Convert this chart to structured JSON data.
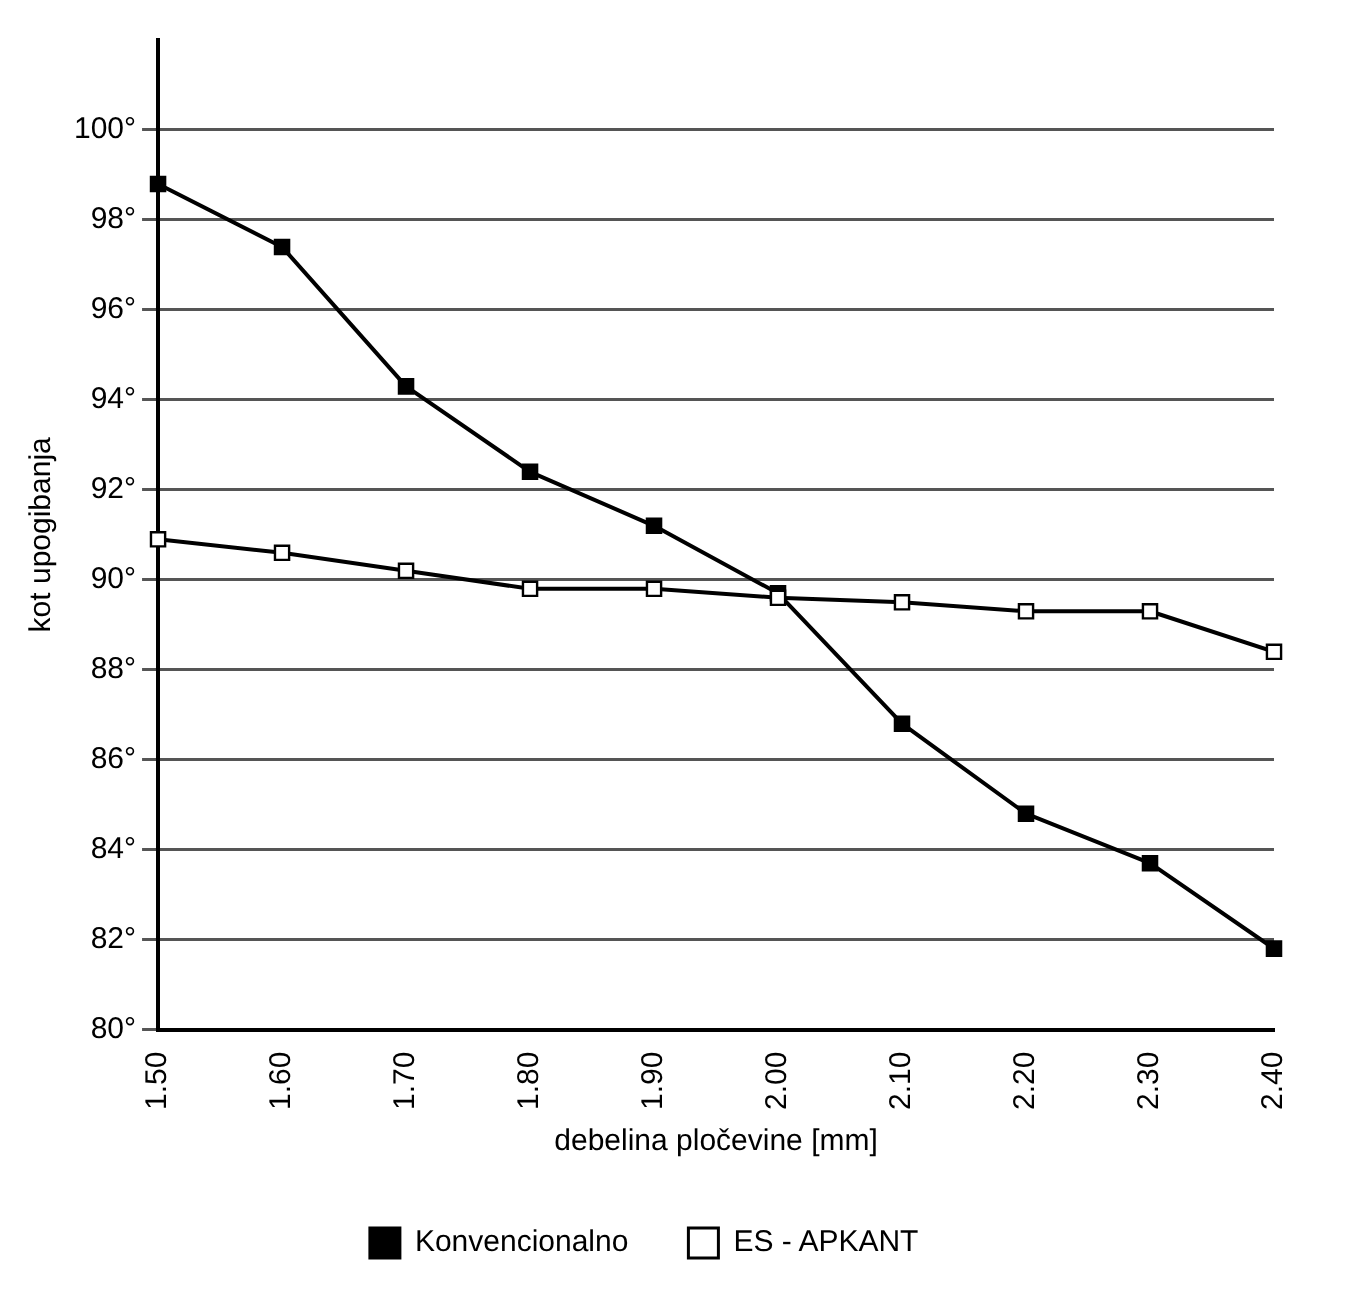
{
  "chart_data": {
    "type": "line",
    "xlabel": "debelina pločevine [mm]",
    "ylabel": "kot upogibanja",
    "categories": [
      "1.50",
      "1.60",
      "1.70",
      "1.80",
      "1.90",
      "2.00",
      "2.10",
      "2.20",
      "2.30",
      "2.40"
    ],
    "series": [
      {
        "name": "Konvencionalno",
        "color": "#000000",
        "values": [
          98.8,
          97.4,
          94.3,
          92.4,
          91.2,
          89.7,
          86.8,
          84.8,
          83.7,
          81.8
        ]
      },
      {
        "name": "ES - APKANT",
        "color": "#000000",
        "values": [
          90.9,
          90.6,
          90.2,
          89.8,
          89.8,
          89.6,
          89.5,
          89.3,
          89.3,
          88.4
        ]
      }
    ],
    "ylim": [
      80,
      102
    ],
    "yticks": [
      {
        "value": 80,
        "label": "80°"
      },
      {
        "value": 82,
        "label": "82°"
      },
      {
        "value": 84,
        "label": "84°"
      },
      {
        "value": 86,
        "label": "86°"
      },
      {
        "value": 88,
        "label": "88°"
      },
      {
        "value": 90,
        "label": "90°"
      },
      {
        "value": 92,
        "label": "92°"
      },
      {
        "value": 94,
        "label": "94°"
      },
      {
        "value": 96,
        "label": "96°"
      },
      {
        "value": 98,
        "label": "98°"
      },
      {
        "value": 100,
        "label": "100°"
      }
    ],
    "grid": "y",
    "legend": "bottom",
    "marker": "square",
    "line_style": "solid"
  }
}
